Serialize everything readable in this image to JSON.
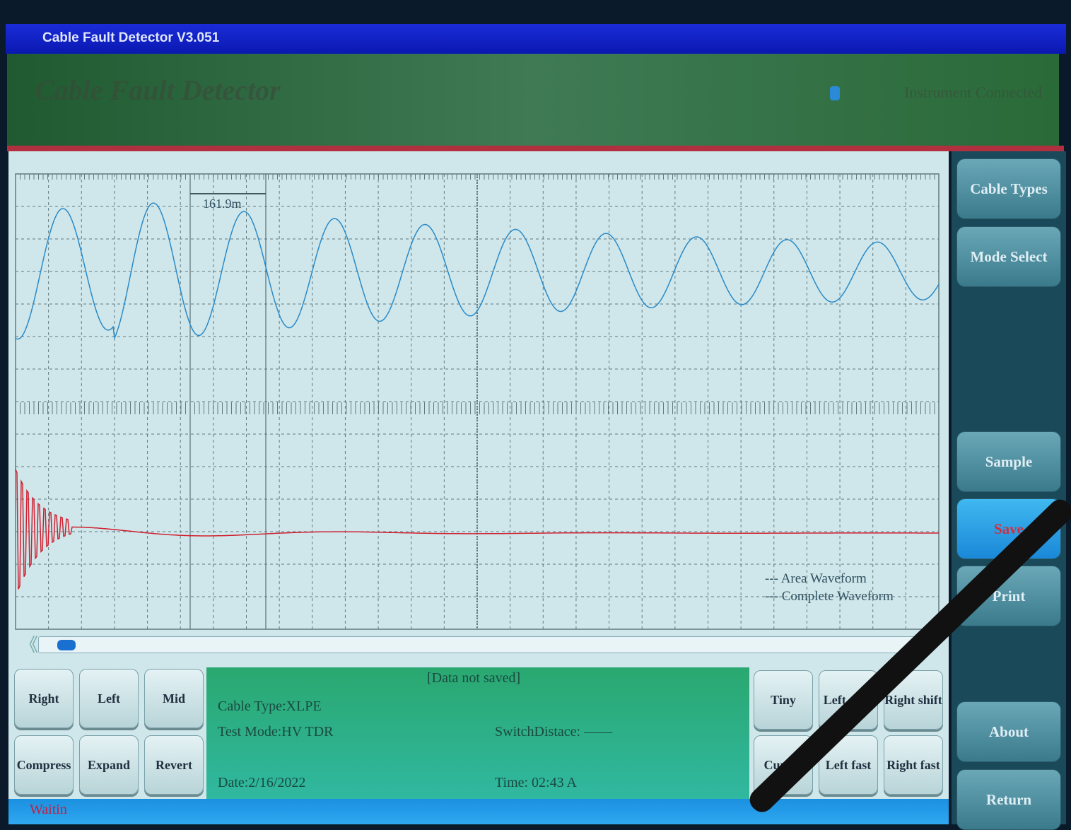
{
  "window": {
    "title": "Cable Fault Detector  V3.051"
  },
  "banner": {
    "app_name": "Cable Fault Detector",
    "connection_status": "Instrument Connected"
  },
  "plot": {
    "cursor_distance": "161.9m",
    "legend": [
      "Area Waveform",
      "Complete Waveform"
    ],
    "colors": {
      "area_waveform": "#2a8ac8",
      "complete_waveform": "#d02030",
      "grid": "#607a80"
    }
  },
  "right_buttons": [
    "Cable Types",
    "Mode Select",
    "Sample",
    "Save",
    "Print",
    "About",
    "Return"
  ],
  "left_controls": [
    "Right",
    "Left",
    "Mid",
    "Compress",
    "Expand",
    "Revert"
  ],
  "right_controls": [
    "Tiny",
    "Left shift",
    "Right shift",
    "Cursor",
    "Left fast",
    "Right fast"
  ],
  "info": {
    "save_state": "[Data not saved]",
    "cable_type": "Cable Type:XLPE",
    "test_mode": "Test Mode:HV TDR",
    "switch_distance": "SwitchDistace: ——",
    "date": "Date:2/16/2022",
    "time": "Time: 02:43 A"
  },
  "status": "Waitin"
}
